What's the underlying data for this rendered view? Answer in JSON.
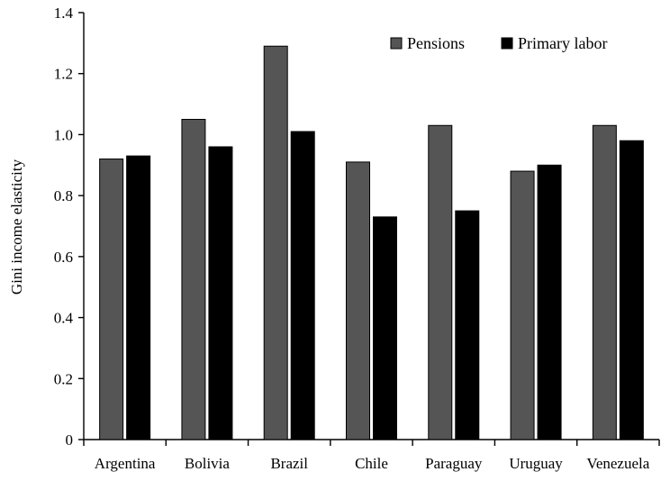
{
  "chart_data": {
    "type": "bar",
    "title": "",
    "xlabel": "",
    "ylabel": "Gini income elasticity",
    "ylim": [
      0,
      1.4
    ],
    "yticks": [
      "0",
      "0.2",
      "0.4",
      "0.6",
      "0.8",
      "1.0",
      "1.2",
      "1.4"
    ],
    "grid": false,
    "legend_position": "top-right",
    "categories": [
      "Argentina",
      "Bolivia",
      "Brazil",
      "Chile",
      "Paraguay",
      "Uruguay",
      "Venezuela"
    ],
    "series": [
      {
        "name": "Pensions",
        "color": "#555555",
        "values": [
          0.92,
          1.05,
          1.29,
          0.91,
          1.03,
          0.88,
          1.03
        ]
      },
      {
        "name": "Primary labor",
        "color": "#000000",
        "values": [
          0.93,
          0.96,
          1.01,
          0.73,
          0.75,
          0.9,
          0.98
        ]
      }
    ]
  }
}
